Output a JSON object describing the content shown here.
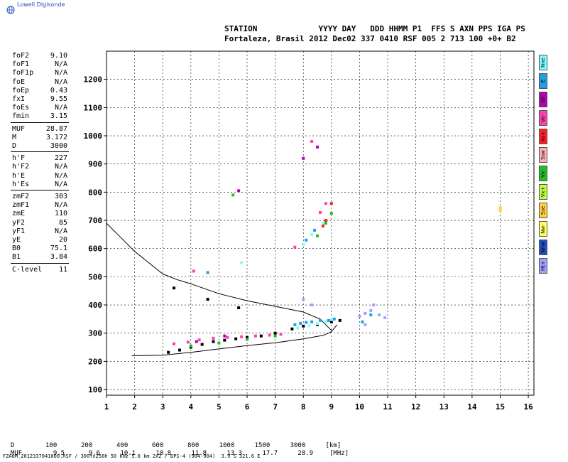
{
  "header": {
    "logo_text": "Lowell Digisonde",
    "line1": "STATION             YYYY DAY   DDD HHMM P1  FFS S AXN PPS IGA PS",
    "line2": "Fortaleza, Brasil 2012 Dec02 337 0410 RSF 005 2 713 100 +0+ B2"
  },
  "params": [
    {
      "label": "foF2",
      "value": "9.10",
      "group": 1
    },
    {
      "label": "foF1",
      "value": "N/A",
      "group": 1
    },
    {
      "label": "foF1p",
      "value": "N/A",
      "group": 1
    },
    {
      "label": "foE",
      "value": "N/A",
      "group": 1
    },
    {
      "label": "foEp",
      "value": "0.43",
      "group": 1
    },
    {
      "label": "fxI",
      "value": "9.55",
      "group": 1
    },
    {
      "label": "foEs",
      "value": "N/A",
      "group": 1
    },
    {
      "label": "fmin",
      "value": "3.15",
      "group": 1
    },
    {
      "label": "MUF",
      "value": "28.87",
      "group": 2
    },
    {
      "label": "M",
      "value": "3.172",
      "group": 2
    },
    {
      "label": "D",
      "value": "3000",
      "group": 2
    },
    {
      "label": "h'F",
      "value": "227",
      "group": 3
    },
    {
      "label": "h'F2",
      "value": "N/A",
      "group": 3
    },
    {
      "label": "h'E",
      "value": "N/A",
      "group": 3
    },
    {
      "label": "h'Es",
      "value": "N/A",
      "group": 3
    },
    {
      "label": "zmF2",
      "value": "303",
      "group": 4
    },
    {
      "label": "zmF1",
      "value": "N/A",
      "group": 4
    },
    {
      "label": "zmE",
      "value": "110",
      "group": 4
    },
    {
      "label": "yF2",
      "value": "85",
      "group": 4
    },
    {
      "label": "yF1",
      "value": "N/A",
      "group": 4
    },
    {
      "label": "yE",
      "value": "20",
      "group": 4
    },
    {
      "label": "B0",
      "value": "75.1",
      "group": 4
    },
    {
      "label": "B1",
      "value": "3.84",
      "group": 4
    },
    {
      "label": "C-level",
      "value": "11",
      "group": 5
    }
  ],
  "legend": [
    {
      "label": "Nne",
      "color": "#7fffff"
    },
    {
      "label": "E",
      "color": "#1fa0e0"
    },
    {
      "label": "W",
      "color": "#b000b0"
    },
    {
      "label": "Vo-",
      "color": "#ff40b0"
    },
    {
      "label": "Vo+",
      "color": "#ff2020"
    },
    {
      "label": "Ssw",
      "color": "#ffb0b0"
    },
    {
      "label": "Vx-",
      "color": "#20c020"
    },
    {
      "label": "Vx+",
      "color": "#c0ff40"
    },
    {
      "label": "Sse",
      "color": "#ffd040"
    },
    {
      "label": "Nw-",
      "color": "#ffff60"
    },
    {
      "label": "Nnw",
      "color": "#2050c0"
    },
    {
      "label": "Ht+",
      "color": "#a0a0ff"
    }
  ],
  "muf_table": {
    "d_label": "D",
    "d_values": [
      "100",
      "200",
      "400",
      "600",
      "800",
      "1000",
      "1500",
      "3000",
      "[km]"
    ],
    "muf_label": "MUF",
    "muf_values": [
      "9.5",
      "9.6",
      "10.1",
      "10.8",
      "11.8",
      "13.3",
      "17.7",
      "28.9",
      "[MHz]"
    ]
  },
  "footer_text": "FZA0M_2012337041000.RSF / 300fx256h 50 kHz 5.0 km 2x2 / DPS-4 (904-904)  3.9 S 321.6 E",
  "chart_data": {
    "type": "scatter",
    "xlim": [
      1,
      16.2
    ],
    "ylim": [
      80,
      1300
    ],
    "x_ticks": [
      1,
      2,
      3,
      4,
      5,
      6,
      7,
      8,
      9,
      10,
      11,
      12,
      13,
      14,
      15,
      16
    ],
    "y_ticks": [
      100,
      200,
      300,
      400,
      500,
      600,
      700,
      800,
      900,
      1000,
      1100,
      1200
    ],
    "grid": true,
    "series": [
      {
        "color": "#000000",
        "points": [
          [
            3.2,
            232
          ],
          [
            3.6,
            240
          ],
          [
            4.0,
            250
          ],
          [
            4.4,
            260
          ],
          [
            4.8,
            270
          ],
          [
            5.2,
            275
          ],
          [
            5.6,
            280
          ],
          [
            6.0,
            285
          ],
          [
            6.5,
            290
          ],
          [
            7.0,
            300
          ],
          [
            7.6,
            315
          ],
          [
            8.0,
            325
          ],
          [
            8.5,
            330
          ],
          [
            9.0,
            340
          ],
          [
            9.3,
            345
          ],
          [
            3.4,
            460
          ],
          [
            4.6,
            420
          ],
          [
            5.7,
            390
          ]
        ]
      },
      {
        "color": "#ff40b0",
        "points": [
          [
            3.4,
            262
          ],
          [
            3.9,
            268
          ],
          [
            4.3,
            276
          ],
          [
            4.8,
            282
          ],
          [
            5.3,
            285
          ],
          [
            5.8,
            287
          ],
          [
            6.3,
            290
          ],
          [
            6.8,
            293
          ],
          [
            7.2,
            296
          ],
          [
            8.6,
            728
          ],
          [
            8.8,
            760
          ],
          [
            8.3,
            980
          ],
          [
            4.1,
            520
          ],
          [
            7.7,
            605
          ]
        ]
      },
      {
        "color": "#1fa0e0",
        "points": [
          [
            7.7,
            330
          ],
          [
            7.9,
            335
          ],
          [
            8.1,
            338
          ],
          [
            8.3,
            340
          ],
          [
            8.6,
            345
          ],
          [
            8.9,
            345
          ],
          [
            9.1,
            350
          ],
          [
            10.1,
            340
          ],
          [
            10.4,
            365
          ],
          [
            8.1,
            630
          ],
          [
            8.4,
            665
          ],
          [
            4.6,
            515
          ]
        ]
      },
      {
        "color": "#7fffff",
        "points": [
          [
            7.8,
            318
          ],
          [
            8.2,
            326
          ],
          [
            8.5,
            334
          ],
          [
            8.8,
            342
          ],
          [
            9.0,
            348
          ],
          [
            8.0,
            615
          ],
          [
            8.3,
            650
          ],
          [
            8.7,
            690
          ],
          [
            5.8,
            550
          ]
        ]
      },
      {
        "color": "#20c020",
        "points": [
          [
            4.0,
            255
          ],
          [
            5.0,
            265
          ],
          [
            6.0,
            278
          ],
          [
            7.0,
            290
          ],
          [
            8.5,
            645
          ],
          [
            8.8,
            690
          ],
          [
            9.0,
            725
          ],
          [
            5.5,
            790
          ]
        ]
      },
      {
        "color": "#ff2020",
        "points": [
          [
            8.8,
            700
          ],
          [
            8.7,
            680
          ],
          [
            9.0,
            760
          ]
        ]
      },
      {
        "color": "#b000b0",
        "points": [
          [
            4.2,
            270
          ],
          [
            5.2,
            290
          ],
          [
            8.0,
            920
          ],
          [
            8.5,
            960
          ],
          [
            5.7,
            805
          ]
        ]
      },
      {
        "color": "#a0a0ff",
        "points": [
          [
            10.0,
            360
          ],
          [
            10.2,
            370
          ],
          [
            10.4,
            380
          ],
          [
            10.7,
            365
          ],
          [
            10.9,
            355
          ],
          [
            10.2,
            330
          ],
          [
            10.5,
            400
          ],
          [
            8.0,
            420
          ],
          [
            8.3,
            400
          ]
        ]
      },
      {
        "color": "#ffd040",
        "points": [
          [
            15.0,
            735
          ],
          [
            15.0,
            745
          ]
        ]
      }
    ],
    "curves": [
      {
        "points": [
          [
            1.9,
            220
          ],
          [
            3.0,
            222
          ],
          [
            4.0,
            232
          ],
          [
            5.0,
            244
          ],
          [
            6.0,
            256
          ],
          [
            7.0,
            266
          ],
          [
            8.0,
            280
          ],
          [
            8.7,
            292
          ],
          [
            9.0,
            305
          ],
          [
            9.2,
            330
          ]
        ]
      },
      {
        "points": [
          [
            1.0,
            690
          ],
          [
            1.5,
            640
          ],
          [
            2.0,
            590
          ],
          [
            2.5,
            550
          ],
          [
            3.0,
            510
          ],
          [
            3.5,
            490
          ],
          [
            4.0,
            475
          ],
          [
            5.0,
            440
          ],
          [
            6.0,
            415
          ],
          [
            7.0,
            395
          ],
          [
            8.0,
            375
          ],
          [
            8.6,
            350
          ],
          [
            9.0,
            310
          ]
        ]
      }
    ]
  }
}
